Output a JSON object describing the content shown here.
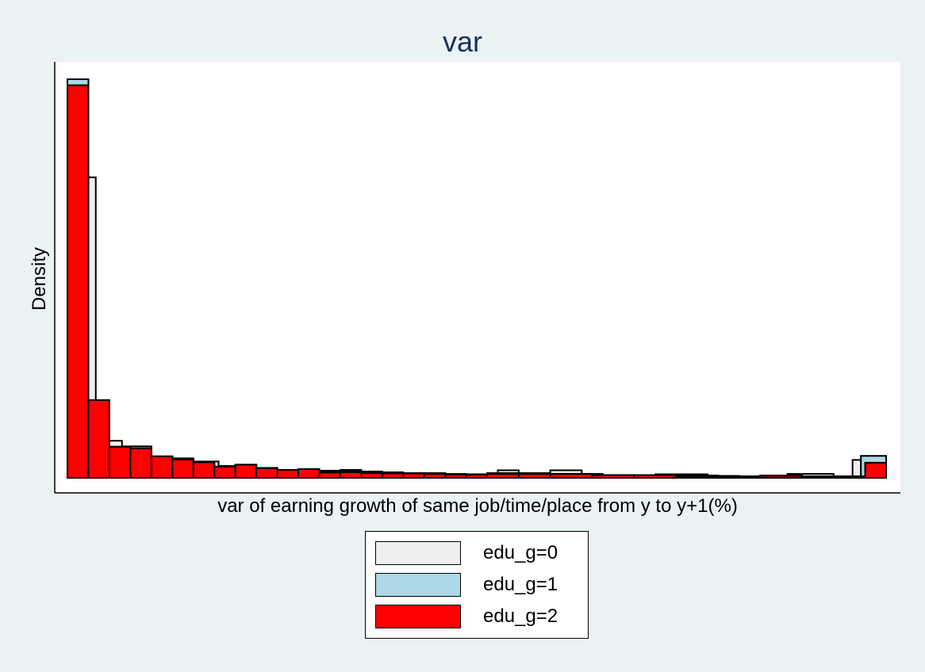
{
  "chart_data": {
    "type": "bar",
    "title": "var",
    "xlabel": "var of earning growth of same job/time/place from y to y+1(%)",
    "ylabel": "Density",
    "grid": false,
    "legend_position": "bottom",
    "ylim": [
      0,
      1
    ],
    "series": [
      {
        "name": "edu_g=0",
        "color": "#efefef",
        "bins": [
          [
            0,
            1,
            0.987
          ],
          [
            1,
            1.35,
            0.754
          ],
          [
            1.35,
            2,
            0.1
          ],
          [
            2,
            2.6,
            0.093
          ],
          [
            2.6,
            4,
            0.079
          ],
          [
            4,
            5,
            0.052
          ],
          [
            5,
            6,
            0.049
          ],
          [
            6,
            7.2,
            0.041
          ],
          [
            7.2,
            8,
            0.03
          ],
          [
            8,
            9,
            0.033
          ],
          [
            9,
            10,
            0.025
          ],
          [
            10,
            11,
            0.019
          ],
          [
            11,
            12,
            0.021
          ],
          [
            12,
            13,
            0.018
          ],
          [
            13,
            14,
            0.02
          ],
          [
            14,
            15,
            0.016
          ],
          [
            15,
            16,
            0.014
          ],
          [
            16,
            17,
            0.012
          ],
          [
            17,
            18,
            0.012
          ],
          [
            18,
            19,
            0.01
          ],
          [
            19,
            20,
            0.009
          ],
          [
            20,
            20.5,
            0.011
          ],
          [
            20.5,
            21.5,
            0.019
          ],
          [
            21.5,
            23,
            0.012
          ],
          [
            23,
            24.5,
            0.019
          ],
          [
            24.5,
            25.5,
            0.01
          ],
          [
            25.5,
            27,
            0.007
          ],
          [
            27,
            28,
            0.005
          ],
          [
            28,
            30.5,
            0.009
          ],
          [
            30.5,
            32,
            0.005
          ],
          [
            32,
            34.3,
            0.004
          ],
          [
            34.3,
            36.5,
            0.01
          ],
          [
            36.5,
            37.4,
            0.004
          ],
          [
            37.4,
            37.8,
            0.045
          ],
          [
            37.8,
            39,
            0.055
          ]
        ]
      },
      {
        "name": "edu_g=1",
        "color": "#add8e6",
        "bins": [
          [
            0,
            1,
            1.0
          ],
          [
            1,
            2,
            0.195
          ],
          [
            2,
            3,
            0.078
          ],
          [
            3,
            4,
            0.074
          ],
          [
            4,
            5,
            0.054
          ],
          [
            5,
            6,
            0.046
          ],
          [
            6,
            7,
            0.039
          ],
          [
            7,
            8,
            0.028
          ],
          [
            8,
            9,
            0.033
          ],
          [
            9,
            10,
            0.024
          ],
          [
            10,
            11,
            0.02
          ],
          [
            11,
            12,
            0.022
          ],
          [
            12,
            13,
            0.017
          ],
          [
            13,
            14,
            0.018
          ],
          [
            14,
            15,
            0.015
          ],
          [
            15,
            16,
            0.013
          ],
          [
            16,
            17,
            0.011
          ],
          [
            17,
            18,
            0.011
          ],
          [
            18,
            19,
            0.009
          ],
          [
            19,
            20,
            0.009
          ],
          [
            20,
            21.5,
            0.012
          ],
          [
            21.5,
            23,
            0.011
          ],
          [
            23,
            25,
            0.01
          ],
          [
            25,
            27,
            0.007
          ],
          [
            27,
            29,
            0.006
          ],
          [
            29,
            31,
            0.006
          ],
          [
            31,
            33,
            0.004
          ],
          [
            33,
            35,
            0.006
          ],
          [
            35,
            37.8,
            0.004
          ],
          [
            37.8,
            39,
            0.055
          ]
        ]
      },
      {
        "name": "edu_g=2",
        "color": "#ff0000",
        "bins": [
          [
            0,
            1,
            0.985
          ],
          [
            1,
            2,
            0.195
          ],
          [
            2,
            3,
            0.078
          ],
          [
            3,
            4,
            0.074
          ],
          [
            4,
            5,
            0.054
          ],
          [
            5,
            6,
            0.046
          ],
          [
            6,
            7,
            0.039
          ],
          [
            7,
            8,
            0.028
          ],
          [
            8,
            9,
            0.033
          ],
          [
            9,
            10,
            0.024
          ],
          [
            10,
            11,
            0.02
          ],
          [
            11,
            12,
            0.022
          ],
          [
            12,
            13,
            0.013
          ],
          [
            13,
            14,
            0.014
          ],
          [
            14,
            15,
            0.012
          ],
          [
            15,
            16,
            0.011
          ],
          [
            16,
            17,
            0.011
          ],
          [
            17,
            18,
            0.01
          ],
          [
            18,
            19,
            0.008
          ],
          [
            19,
            20,
            0.008
          ],
          [
            20,
            21.5,
            0.01
          ],
          [
            21.5,
            23,
            0.01
          ],
          [
            23,
            25,
            0.01
          ],
          [
            25,
            27,
            0.007
          ],
          [
            27,
            29,
            0.007
          ],
          [
            29,
            31,
            0.004
          ],
          [
            31,
            33,
            0.004
          ],
          [
            33,
            35,
            0.005
          ],
          [
            35,
            37,
            0.004
          ],
          [
            37,
            38,
            0.004
          ],
          [
            38,
            39,
            0.038
          ]
        ]
      }
    ]
  }
}
